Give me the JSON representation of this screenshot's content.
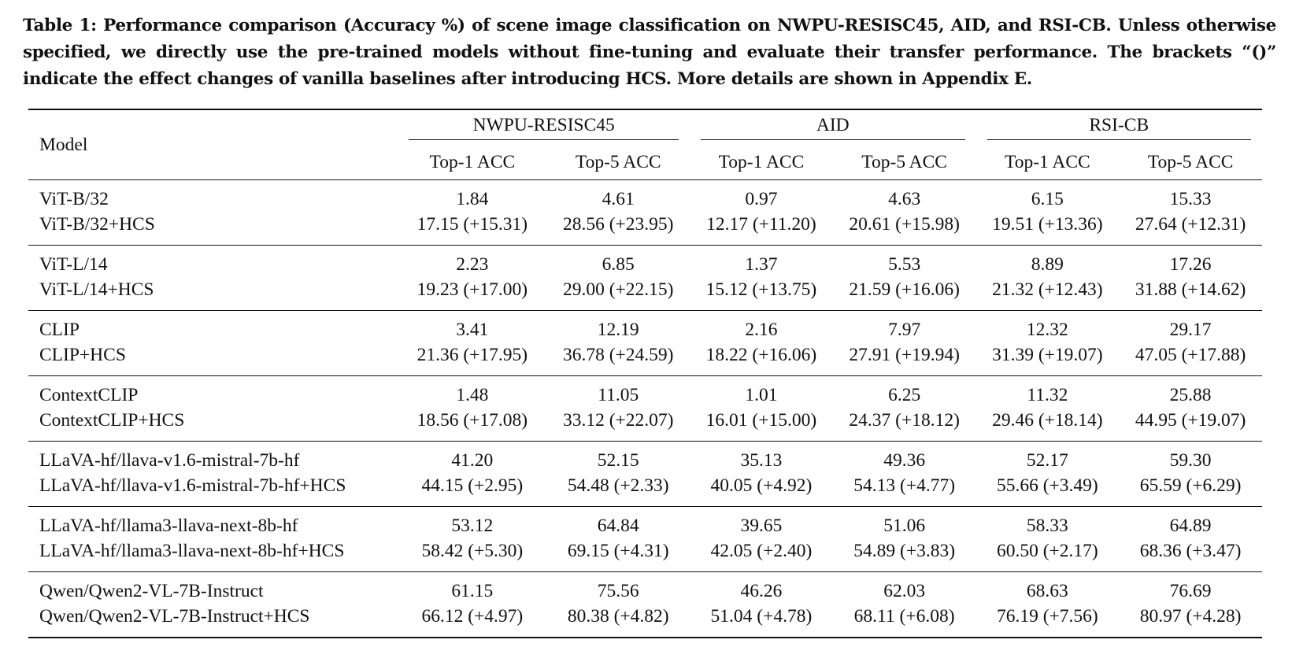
{
  "caption": "Table 1: Performance comparison (Accuracy %) of scene image classification on NWPU-RESISC45, AID, and RSI-CB. Unless otherwise specified, we directly use the pre-trained models without fine-tuning and evaluate their transfer performance. The brackets “()” indicate the effect changes of vanilla baselines after introducing HCS. More details are shown in Appendix E.",
  "header": {
    "model": "Model",
    "datasets": [
      "NWPU-RESISC45",
      "AID",
      "RSI-CB"
    ],
    "metrics": [
      "Top-1 ACC",
      "Top-5 ACC",
      "Top-1 ACC",
      "Top-5 ACC",
      "Top-1 ACC",
      "Top-5 ACC"
    ]
  },
  "groups": [
    {
      "rows": [
        {
          "model": "ViT-B/32",
          "values": [
            "1.84",
            "4.61",
            "0.97",
            "4.63",
            "6.15",
            "15.33"
          ]
        },
        {
          "model": "ViT-B/32+HCS",
          "values": [
            "17.15 (+15.31)",
            "28.56 (+23.95)",
            "12.17 (+11.20)",
            "20.61 (+15.98)",
            "19.51 (+13.36)",
            "27.64 (+12.31)"
          ]
        }
      ]
    },
    {
      "rows": [
        {
          "model": "ViT-L/14",
          "values": [
            "2.23",
            "6.85",
            "1.37",
            "5.53",
            "8.89",
            "17.26"
          ]
        },
        {
          "model": "ViT-L/14+HCS",
          "values": [
            "19.23 (+17.00)",
            "29.00 (+22.15)",
            "15.12 (+13.75)",
            "21.59 (+16.06)",
            "21.32 (+12.43)",
            "31.88 (+14.62)"
          ]
        }
      ]
    },
    {
      "rows": [
        {
          "model": "CLIP",
          "values": [
            "3.41",
            "12.19",
            "2.16",
            "7.97",
            "12.32",
            "29.17"
          ]
        },
        {
          "model": "CLIP+HCS",
          "values": [
            "21.36 (+17.95)",
            "36.78 (+24.59)",
            "18.22 (+16.06)",
            "27.91 (+19.94)",
            "31.39 (+19.07)",
            "47.05 (+17.88)"
          ]
        }
      ]
    },
    {
      "rows": [
        {
          "model": "ContextCLIP",
          "values": [
            "1.48",
            "11.05",
            "1.01",
            "6.25",
            "11.32",
            "25.88"
          ]
        },
        {
          "model": "ContextCLIP+HCS",
          "values": [
            "18.56 (+17.08)",
            "33.12 (+22.07)",
            "16.01 (+15.00)",
            "24.37 (+18.12)",
            "29.46 (+18.14)",
            "44.95 (+19.07)"
          ]
        }
      ]
    },
    {
      "rows": [
        {
          "model": "LLaVA-hf/llava-v1.6-mistral-7b-hf",
          "values": [
            "41.20",
            "52.15",
            "35.13",
            "49.36",
            "52.17",
            "59.30"
          ]
        },
        {
          "model": "LLaVA-hf/llava-v1.6-mistral-7b-hf+HCS",
          "values": [
            "44.15 (+2.95)",
            "54.48 (+2.33)",
            "40.05 (+4.92)",
            "54.13 (+4.77)",
            "55.66 (+3.49)",
            "65.59 (+6.29)"
          ]
        }
      ]
    },
    {
      "rows": [
        {
          "model": "LLaVA-hf/llama3-llava-next-8b-hf",
          "values": [
            "53.12",
            "64.84",
            "39.65",
            "51.06",
            "58.33",
            "64.89"
          ]
        },
        {
          "model": "LLaVA-hf/llama3-llava-next-8b-hf+HCS",
          "values": [
            "58.42 (+5.30)",
            "69.15 (+4.31)",
            "42.05 (+2.40)",
            "54.89 (+3.83)",
            "60.50 (+2.17)",
            "68.36 (+3.47)"
          ]
        }
      ]
    },
    {
      "rows": [
        {
          "model": "Qwen/Qwen2-VL-7B-Instruct",
          "values": [
            "61.15",
            "75.56",
            "46.26",
            "62.03",
            "68.63",
            "76.69"
          ]
        },
        {
          "model": "Qwen/Qwen2-VL-7B-Instruct+HCS",
          "values": [
            "66.12 (+4.97)",
            "80.38 (+4.82)",
            "51.04 (+4.78)",
            "68.11 (+6.08)",
            "76.19 (+7.56)",
            "80.97 (+4.28)"
          ]
        }
      ]
    }
  ]
}
